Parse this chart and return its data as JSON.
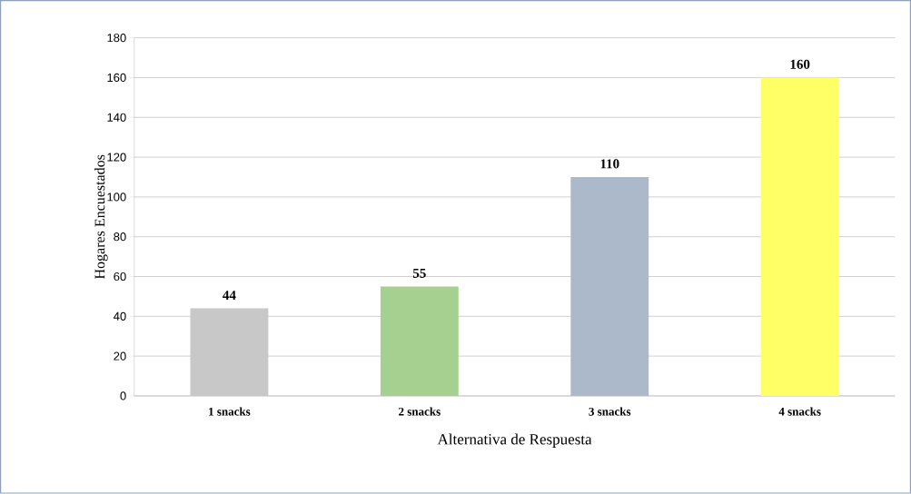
{
  "chart_data": {
    "type": "bar",
    "xlabel": "Alternativa de Respuesta",
    "ylabel": "Hogares Encuestados",
    "categories": [
      "1 snacks",
      "2 snacks",
      "3 snacks",
      "4 snacks"
    ],
    "values": [
      44,
      55,
      110,
      160
    ],
    "colors": [
      "#c8c8c8",
      "#a6d08f",
      "#acb9ca",
      "#ffff66"
    ],
    "ylim": [
      0,
      180
    ],
    "yticks": [
      0,
      20,
      40,
      60,
      80,
      100,
      120,
      140,
      160,
      180
    ],
    "grid": "y",
    "data_labels": true
  }
}
